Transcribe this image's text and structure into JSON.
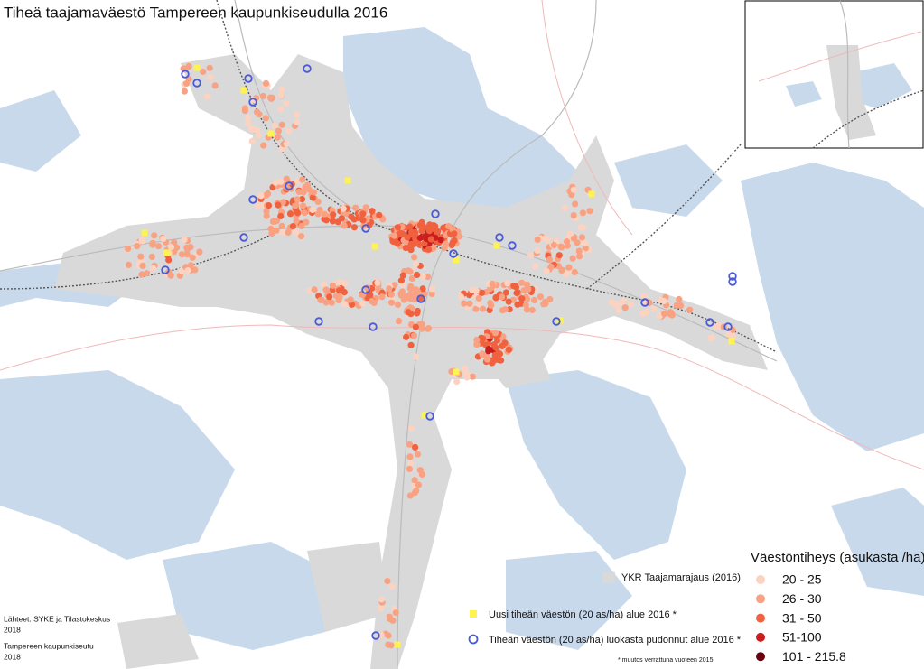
{
  "title": "Tiheä taajamaväestö Tampereen kaupunkiseudulla 2016",
  "legend": {
    "title": "Väestöntiheys (asukasta /ha)",
    "classes": [
      {
        "label": "20 - 25",
        "color": "#fcd3c1"
      },
      {
        "label": "26 - 30",
        "color": "#f9a283"
      },
      {
        "label": "31 - 50",
        "color": "#f0623f"
      },
      {
        "label": "51-100",
        "color": "#cb1d1e"
      },
      {
        "label": "101 - 215.8",
        "color": "#6b0010"
      }
    ],
    "urban_area": "YKR Taajamarajaus (2016)",
    "new_area": "Uusi tiheän väestön (20 as/ha) alue 2016 *",
    "dropped_area": "Tiheän väestön (20 as/ha) luokasta pudonnut alue 2016 *",
    "note": "* muutos verrattuna vuoteen 2015"
  },
  "sources": [
    "Lähteet: SYKE ja Tilastokeskus",
    "2018",
    "Tampereen kaupunkiseutu",
    "2018"
  ]
}
